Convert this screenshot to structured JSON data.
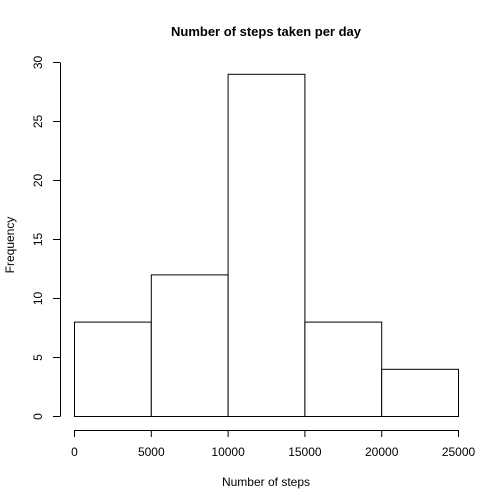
{
  "chart_data": {
    "type": "bar",
    "title": "Number of steps taken per day",
    "xlabel": "Number of steps",
    "ylabel": "Frequency",
    "bins": [
      {
        "start": 0,
        "end": 5000,
        "value": 8
      },
      {
        "start": 5000,
        "end": 10000,
        "value": 12
      },
      {
        "start": 10000,
        "end": 15000,
        "value": 29
      },
      {
        "start": 15000,
        "end": 20000,
        "value": 8
      },
      {
        "start": 20000,
        "end": 25000,
        "value": 4
      }
    ],
    "xlim": [
      0,
      25000
    ],
    "ylim": [
      0,
      30
    ],
    "x_ticks": [
      "0",
      "5000",
      "10000",
      "15000",
      "20000",
      "25000"
    ],
    "y_ticks": [
      "0",
      "5",
      "10",
      "15",
      "20",
      "25",
      "30"
    ],
    "grid": false,
    "legend": "none",
    "colors": {
      "bar_fill": "#ffffff",
      "bar_stroke": "#000000"
    }
  }
}
